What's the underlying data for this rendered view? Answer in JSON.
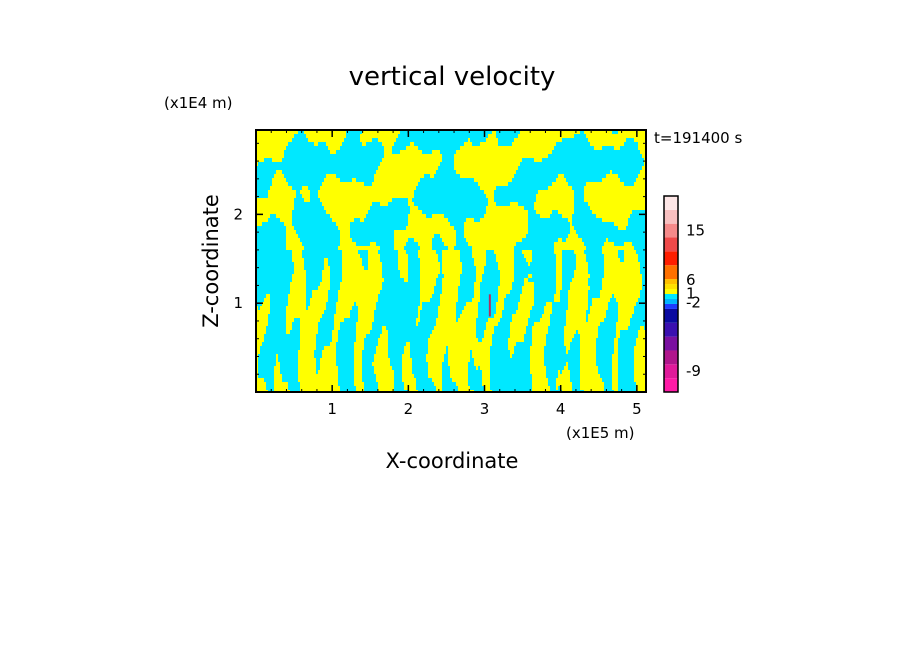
{
  "chart_data": {
    "type": "heatmap",
    "title": "vertical velocity",
    "xlabel": "X-coordinate",
    "ylabel": "Z-coordinate",
    "x_unit": "(x1E5 m)",
    "y_unit": "(x1E4 m)",
    "time_label": "t=191400 s",
    "xlim": [
      0,
      5.12
    ],
    "ylim": [
      0,
      2.95
    ],
    "x_ticks": [
      {
        "value": 1,
        "label": "1"
      },
      {
        "value": 2,
        "label": "2"
      },
      {
        "value": 3,
        "label": "3"
      },
      {
        "value": 4,
        "label": "4"
      },
      {
        "value": 5,
        "label": "5"
      }
    ],
    "y_ticks": [
      {
        "value": 1,
        "label": "1"
      },
      {
        "value": 2,
        "label": "2"
      }
    ],
    "colorbar": {
      "colors": [
        "#ff1aa6",
        "#e01a9a",
        "#b0168c",
        "#7a10a0",
        "#3a10b0",
        "#0a0aa0",
        "#1e3cff",
        "#00b4ff",
        "#00e8ff",
        "#ffff00",
        "#ffe000",
        "#ffc000",
        "#ff7000",
        "#ff1e00",
        "#f04a4a",
        "#f58a8a",
        "#f8c0c0",
        "#fde6e6"
      ],
      "labels": [
        {
          "label": "-9",
          "level": 1.5
        },
        {
          "label": "-2",
          "level": 7.3
        },
        {
          "label": "1",
          "level": 9.1
        },
        {
          "label": "6",
          "level": 11.8
        },
        {
          "label": "15",
          "level": 15.5
        }
      ]
    },
    "field_colors": {
      "negative": "#00e8ff",
      "positive": "#ffff00",
      "accent": "#b03060"
    }
  }
}
